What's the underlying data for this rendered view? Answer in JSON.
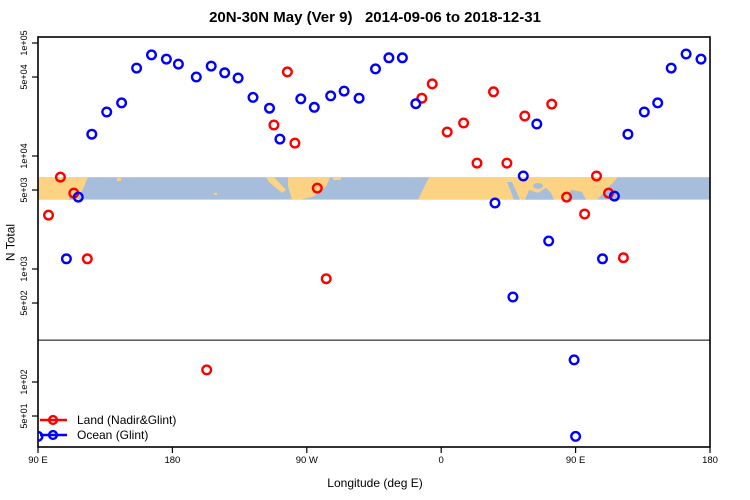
{
  "title": "20N-30N May (Ver 9)   2014-09-06 to 2018-12-31",
  "colors": {
    "land_series": "#FF0000",
    "ocean_series": "#0000FF",
    "map_land": "#FCD383",
    "map_ocean": "#A6BDDC",
    "axis": "#000000"
  },
  "chart_data": {
    "type": "scatter",
    "title": "20N-30N May (Ver 9)   2014-09-06 to 2018-12-31",
    "xlabel": "Longitude (deg E)",
    "ylabel": "N Total",
    "x_axis": {
      "min": 90,
      "max": 540,
      "unit": "deg E (wrapped axis spanning 450 deg)",
      "ticks": [
        {
          "value": 90,
          "label": "90 E"
        },
        {
          "value": 180,
          "label": "180"
        },
        {
          "value": 270,
          "label": "90 W"
        },
        {
          "value": 360,
          "label": "0"
        },
        {
          "value": 450,
          "label": "90 E"
        },
        {
          "value": 540,
          "label": "180"
        }
      ]
    },
    "y_axis": {
      "scale": "log",
      "min": 26,
      "max": 120000,
      "ticks": [
        {
          "value": 100000,
          "label": "1e+05"
        },
        {
          "value": 50000,
          "label": "5e+04"
        },
        {
          "value": 10000,
          "label": "1e+04"
        },
        {
          "value": 5000,
          "label": "5e+03"
        },
        {
          "value": 1000,
          "label": "1e+03"
        },
        {
          "value": 500,
          "label": "5e+02"
        },
        {
          "value": 100,
          "label": "1e+02"
        },
        {
          "value": 50,
          "label": "5e+01"
        }
      ]
    },
    "separator_value": 235,
    "map_band": {
      "value_top": 6500,
      "value_bottom": 4100
    },
    "grid": "off",
    "legend_position": "bottom-left",
    "legend": [
      {
        "label": "Land (Nadir&Glint)",
        "color": "#FF0000"
      },
      {
        "label": "Ocean (Glint)",
        "color": "#0000FF"
      }
    ],
    "series": [
      {
        "name": "Land (Nadir&Glint)",
        "color": "#FF0000",
        "marker": "open-circle",
        "points": [
          {
            "lon": 97,
            "n": 3000
          },
          {
            "lon": 105,
            "n": 6500
          },
          {
            "lon": 114,
            "n": 4700
          },
          {
            "lon": 123,
            "n": 1230
          },
          {
            "lon": 203,
            "n": 128
          },
          {
            "lon": 248,
            "n": 18800
          },
          {
            "lon": 257,
            "n": 55500
          },
          {
            "lon": 262,
            "n": 13000
          },
          {
            "lon": 277,
            "n": 5200
          },
          {
            "lon": 283,
            "n": 820
          },
          {
            "lon": 347,
            "n": 32500
          },
          {
            "lon": 354,
            "n": 43500
          },
          {
            "lon": 364,
            "n": 16300
          },
          {
            "lon": 375,
            "n": 19600
          },
          {
            "lon": 384,
            "n": 8650
          },
          {
            "lon": 395,
            "n": 37000
          },
          {
            "lon": 404,
            "n": 8650
          },
          {
            "lon": 416,
            "n": 22600
          },
          {
            "lon": 434,
            "n": 28800
          },
          {
            "lon": 444,
            "n": 4330
          },
          {
            "lon": 456,
            "n": 3070
          },
          {
            "lon": 464,
            "n": 6650
          },
          {
            "lon": 472,
            "n": 4700
          },
          {
            "lon": 482,
            "n": 1260
          }
        ]
      },
      {
        "name": "Ocean (Glint)",
        "color": "#0000FF",
        "marker": "open-circle",
        "points": [
          {
            "lon": 90,
            "n": 33
          },
          {
            "lon": 109,
            "n": 1230
          },
          {
            "lon": 117,
            "n": 4330
          },
          {
            "lon": 126,
            "n": 15600
          },
          {
            "lon": 136,
            "n": 24500
          },
          {
            "lon": 146,
            "n": 29500
          },
          {
            "lon": 156,
            "n": 60000
          },
          {
            "lon": 166,
            "n": 78500
          },
          {
            "lon": 176,
            "n": 72000
          },
          {
            "lon": 184,
            "n": 65000
          },
          {
            "lon": 196,
            "n": 50000
          },
          {
            "lon": 206,
            "n": 62500
          },
          {
            "lon": 215,
            "n": 54500
          },
          {
            "lon": 224,
            "n": 49000
          },
          {
            "lon": 234,
            "n": 33000
          },
          {
            "lon": 245,
            "n": 26500
          },
          {
            "lon": 252,
            "n": 14100
          },
          {
            "lon": 266,
            "n": 32000
          },
          {
            "lon": 275,
            "n": 27000
          },
          {
            "lon": 286,
            "n": 34000
          },
          {
            "lon": 295,
            "n": 37500
          },
          {
            "lon": 305,
            "n": 32500
          },
          {
            "lon": 316,
            "n": 59000
          },
          {
            "lon": 325,
            "n": 74000
          },
          {
            "lon": 334,
            "n": 74000
          },
          {
            "lon": 343,
            "n": 29000
          },
          {
            "lon": 396,
            "n": 3840
          },
          {
            "lon": 408,
            "n": 565
          },
          {
            "lon": 415,
            "n": 6650
          },
          {
            "lon": 424,
            "n": 19200
          },
          {
            "lon": 432,
            "n": 1770
          },
          {
            "lon": 449,
            "n": 157
          },
          {
            "lon": 450,
            "n": 33
          },
          {
            "lon": 468,
            "n": 1230
          },
          {
            "lon": 476,
            "n": 4420
          },
          {
            "lon": 485,
            "n": 15600
          },
          {
            "lon": 496,
            "n": 24500
          },
          {
            "lon": 505,
            "n": 29500
          },
          {
            "lon": 514,
            "n": 60000
          },
          {
            "lon": 524,
            "n": 80000
          },
          {
            "lon": 534,
            "n": 72000
          }
        ]
      }
    ]
  }
}
